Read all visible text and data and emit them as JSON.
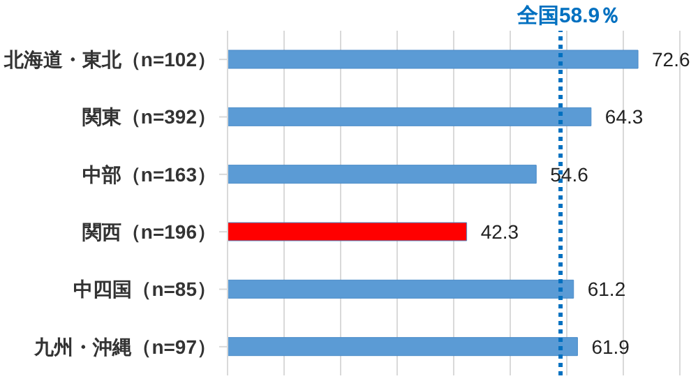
{
  "chart_data": {
    "type": "bar",
    "orientation": "horizontal",
    "categories": [
      "北海道・東北（n=102）",
      "関東（n=392）",
      "中部（n=163）",
      "関西（n=196）",
      "中四国（n=85）",
      "九州・沖縄（n=97）"
    ],
    "values": [
      72.6,
      64.3,
      54.6,
      42.3,
      61.2,
      61.9
    ],
    "colors": [
      "#5b9bd5",
      "#5b9bd5",
      "#5b9bd5",
      "#ff0000",
      "#5b9bd5",
      "#5b9bd5"
    ],
    "xlim": [
      0,
      80
    ],
    "xticks": [
      {
        "value": 0,
        "label": null
      },
      {
        "value": 10,
        "label": null
      },
      {
        "value": 20,
        "label": null
      },
      {
        "value": 30,
        "label": null
      },
      {
        "value": 40,
        "label": null
      },
      {
        "value": 50,
        "label": null
      },
      {
        "value": 60,
        "label": null
      },
      {
        "value": 70,
        "label": null
      },
      {
        "value": 80,
        "label": null
      }
    ],
    "tick_labels": "y",
    "grid": "x",
    "data_labels": true,
    "ref_lines": [
      {
        "axis": "x",
        "value": 58.9,
        "label": "全国58.9％",
        "color": "#0070c0",
        "line_style": "dotted"
      }
    ]
  }
}
